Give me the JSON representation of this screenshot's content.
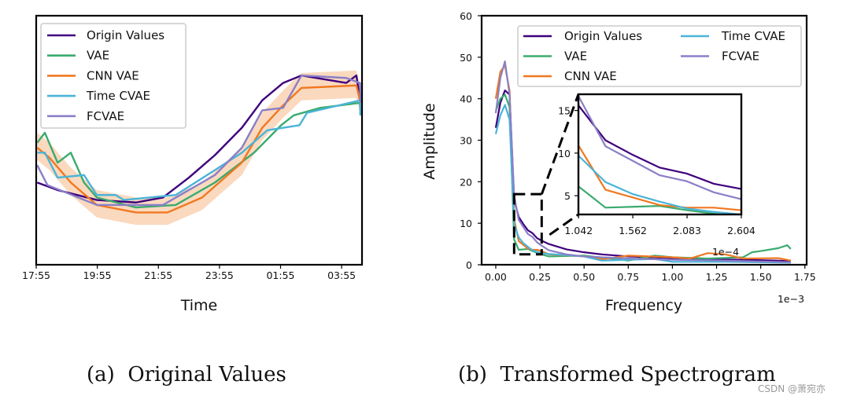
{
  "colors": {
    "Origin Values": "#3f007d",
    "VAE": "#3aab6e",
    "CNN VAE": "#f07820",
    "Time CVAE": "#4ab4d8",
    "FCVAE": "#8a7fc7",
    "band": "#f5b98a"
  },
  "captions": {
    "a": "(a)  Original Values",
    "b": "(b)  Transformed Spectrogram"
  },
  "watermark": "CSDN @萧宛亦",
  "chart_data": [
    {
      "type": "line",
      "xlabel": "Time",
      "ylabel": "",
      "xticks": [
        "17:55",
        "19:55",
        "21:55",
        "23:55",
        "01:55",
        "03:55"
      ],
      "xlim": [
        "17:55",
        "04:35"
      ],
      "ylim": [
        0,
        1
      ],
      "y_scale_note": "relative",
      "legend": {
        "placement": "top-left",
        "entries": [
          "Origin Values",
          "VAE",
          "CNN VAE",
          "Time CVAE",
          "FCVAE"
        ]
      },
      "band": {
        "series": "CNN VAE",
        "minus": 0.05,
        "plus": 0.06
      },
      "series": [
        {
          "name": "Origin Values",
          "x": [
            "17:57",
            "18:37",
            "19:54",
            "21:11",
            "22:04",
            "22:55",
            "23:46",
            "00:39",
            "01:19",
            "02:00",
            "02:36",
            "04:04",
            "04:24",
            "04:32"
          ],
          "y": [
            0.33,
            0.3,
            0.26,
            0.25,
            0.27,
            0.35,
            0.44,
            0.55,
            0.66,
            0.73,
            0.76,
            0.73,
            0.76,
            0.65
          ]
        },
        {
          "name": "VAE",
          "x": [
            "17:57",
            "18:12",
            "18:37",
            "19:03",
            "19:29",
            "19:54",
            "21:11",
            "22:29",
            "23:46",
            "01:03",
            "01:56",
            "02:21",
            "03:13",
            "04:31",
            "04:32"
          ],
          "y": [
            0.49,
            0.53,
            0.41,
            0.45,
            0.33,
            0.27,
            0.23,
            0.24,
            0.33,
            0.45,
            0.56,
            0.6,
            0.63,
            0.65,
            0.6
          ]
        },
        {
          "name": "CNN VAE",
          "x": [
            "17:57",
            "18:21",
            "19:03",
            "19:54",
            "21:11",
            "22:13",
            "23:21",
            "00:39",
            "01:19",
            "02:00",
            "02:36",
            "04:24",
            "04:32"
          ],
          "y": [
            0.47,
            0.43,
            0.33,
            0.24,
            0.21,
            0.21,
            0.27,
            0.41,
            0.55,
            0.64,
            0.71,
            0.72,
            0.65
          ]
        },
        {
          "name": "Time CVAE",
          "x": [
            "17:57",
            "18:12",
            "18:37",
            "19:29",
            "19:54",
            "20:31",
            "20:47",
            "22:29",
            "23:46",
            "00:39",
            "01:29",
            "02:32",
            "02:47",
            "04:31",
            "04:32"
          ],
          "y": [
            0.45,
            0.45,
            0.35,
            0.36,
            0.28,
            0.28,
            0.26,
            0.28,
            0.38,
            0.45,
            0.54,
            0.56,
            0.61,
            0.66,
            0.6
          ]
        },
        {
          "name": "FCVAE",
          "x": [
            "17:57",
            "18:17",
            "19:54",
            "22:04",
            "23:46",
            "00:39",
            "01:19",
            "02:00",
            "02:36",
            "04:04",
            "04:31",
            "04:32"
          ],
          "y": [
            0.4,
            0.32,
            0.24,
            0.24,
            0.36,
            0.47,
            0.62,
            0.63,
            0.76,
            0.75,
            0.73,
            0.65
          ]
        }
      ]
    },
    {
      "type": "line",
      "xlabel": "Frequency",
      "ylabel": "Amplitude",
      "x_offset_label": "1e−3",
      "xticks": [
        "0.00",
        "0.25",
        "0.50",
        "0.75",
        "1.00",
        "1.25",
        "1.50",
        "1.75"
      ],
      "yticks": [
        "0",
        "10",
        "20",
        "30",
        "40",
        "50",
        "60"
      ],
      "xlim": [
        -0.08,
        1.76
      ],
      "ylim": [
        0,
        60
      ],
      "legend": {
        "placement": "top-right",
        "columns": 2,
        "entries": [
          "Origin Values",
          "VAE",
          "CNN VAE",
          "Time CVAE",
          "FCVAE"
        ]
      },
      "series": [
        {
          "name": "Origin Values",
          "x": [
            0,
            0.026,
            0.052,
            0.078,
            0.104,
            0.13,
            0.156,
            0.182,
            0.208,
            0.234,
            0.26,
            0.3,
            0.4,
            0.5,
            0.6,
            0.75,
            1.0,
            1.25,
            1.5,
            1.67
          ],
          "y": [
            33,
            39,
            42,
            41,
            15.6,
            11.5,
            9.8,
            8.3,
            7.6,
            6.4,
            5.8,
            5,
            3.7,
            3,
            2.5,
            2,
            1.6,
            1.3,
            1.1,
            0.9
          ]
        },
        {
          "name": "VAE",
          "x": [
            0,
            0.026,
            0.052,
            0.078,
            0.104,
            0.13,
            0.156,
            0.182,
            0.208,
            0.234,
            0.26,
            0.3,
            0.5,
            0.75,
            0.9,
            1.0,
            1.2,
            1.4,
            1.45,
            1.5,
            1.6,
            1.65,
            1.67
          ],
          "y": [
            37,
            40,
            41,
            38,
            6.1,
            3.6,
            3.7,
            3.8,
            3.3,
            2.9,
            2.5,
            2,
            2.2,
            1,
            2.2,
            1.8,
            1.5,
            1.8,
            3,
            3.3,
            4,
            4.7,
            3.8
          ]
        },
        {
          "name": "CNN VAE",
          "x": [
            0,
            0.026,
            0.052,
            0.078,
            0.104,
            0.13,
            0.156,
            0.182,
            0.208,
            0.234,
            0.26,
            0.3,
            0.5,
            0.6,
            0.75,
            1.0,
            1.1,
            1.2,
            1.3,
            1.4,
            1.6,
            1.67
          ],
          "y": [
            40,
            46.5,
            48,
            42,
            10.9,
            5.7,
            4.8,
            3.9,
            3.6,
            3.6,
            3.3,
            2.5,
            2,
            1.3,
            2.2,
            1.8,
            1.5,
            2.8,
            2.5,
            1.5,
            1.6,
            1
          ]
        },
        {
          "name": "Time CVAE",
          "x": [
            0,
            0.026,
            0.052,
            0.078,
            0.104,
            0.13,
            0.156,
            0.182,
            0.208,
            0.234,
            0.26,
            0.3,
            0.5,
            0.6,
            0.9,
            1.0,
            1.3,
            1.67
          ],
          "y": [
            31.5,
            36,
            38.5,
            35,
            9.7,
            6.6,
            5.2,
            4.3,
            3.5,
            3.1,
            2.8,
            2.6,
            2,
            1,
            1.4,
            0.7,
            0.7,
            0.5
          ]
        },
        {
          "name": "FCVAE",
          "x": [
            0,
            0.026,
            0.052,
            0.078,
            0.104,
            0.13,
            0.156,
            0.182,
            0.208,
            0.234,
            0.26,
            0.3,
            0.4,
            0.5,
            0.75,
            1.0,
            1.3,
            1.67
          ],
          "y": [
            36.5,
            45,
            49,
            41,
            16.7,
            10.8,
            9.1,
            7.4,
            6.7,
            5.4,
            4.6,
            3.5,
            2.5,
            2,
            1.5,
            1.2,
            1,
            0.6
          ]
        }
      ],
      "inset": {
        "xlim": [
          0.104,
          0.2604
        ],
        "ylim": [
          2.8,
          16.9
        ],
        "xticks": [
          "1.042",
          "1.562",
          "2.083",
          "2.604"
        ],
        "xtick_values": [
          0.1042,
          0.1562,
          0.2083,
          0.2604
        ],
        "yticks": [
          "5",
          "10",
          "15"
        ],
        "x_offset_label": "1e−4",
        "zoom_region": {
          "x": [
            0.104,
            0.26
          ],
          "y": [
            2.5,
            17
          ]
        }
      }
    }
  ]
}
